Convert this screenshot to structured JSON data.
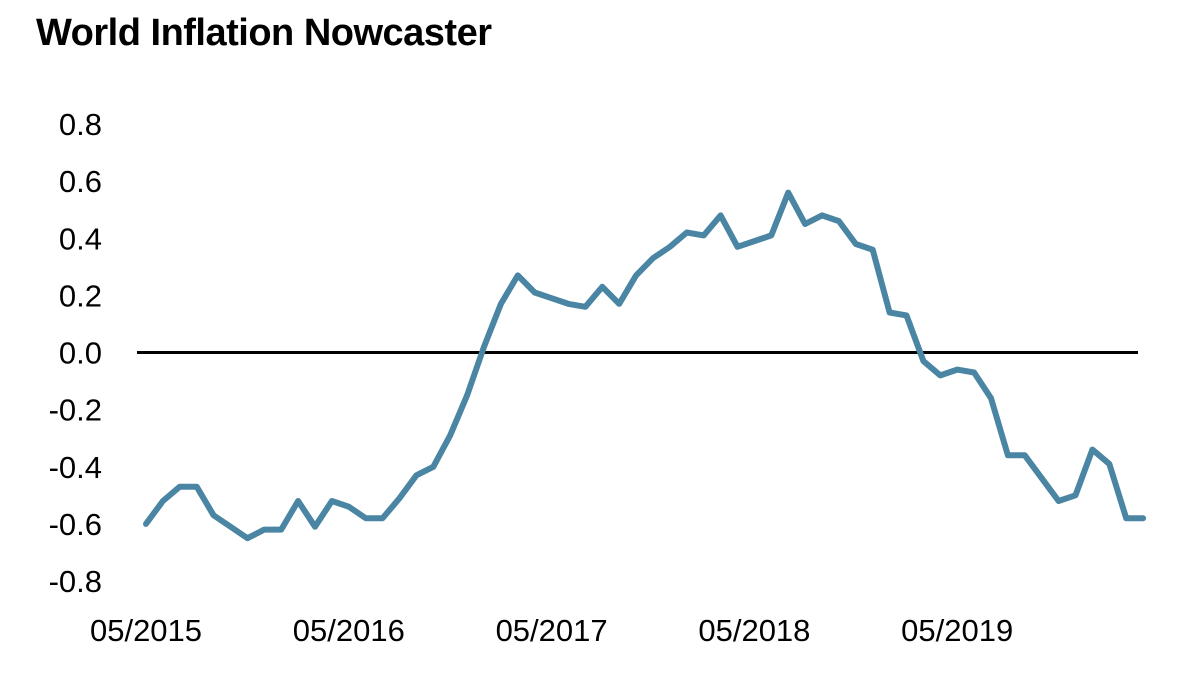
{
  "chart_data": {
    "type": "line",
    "title": "World Inflation Nowcaster",
    "xlabel": "",
    "ylabel": "",
    "ylim": [
      -0.8,
      0.8
    ],
    "yticks": [
      "0.8",
      "0.6",
      "0.4",
      "0.2",
      "0.0",
      "-0.2",
      "-0.4",
      "-0.6",
      "-0.8"
    ],
    "ytick_values": [
      0.8,
      0.6,
      0.4,
      0.2,
      0.0,
      -0.2,
      -0.4,
      -0.6,
      -0.8
    ],
    "xticks": [
      "05/2015",
      "05/2016",
      "05/2017",
      "05/2018",
      "05/2019"
    ],
    "xtick_dates": [
      "2015-05",
      "2016-05",
      "2017-05",
      "2018-05",
      "2019-05"
    ],
    "reference_line": 0.0,
    "grid": false,
    "legend": "none",
    "colors": {
      "series": "#4a86a3",
      "zero_line": "#000000"
    },
    "series": [
      {
        "x": [
          "2015-05",
          "2015-06",
          "2015-07",
          "2015-08",
          "2015-09",
          "2015-10",
          "2015-11",
          "2015-12",
          "2016-01",
          "2016-02",
          "2016-03",
          "2016-04",
          "2016-05",
          "2016-06",
          "2016-07",
          "2016-08",
          "2016-09",
          "2016-10",
          "2016-11",
          "2016-12",
          "2017-01",
          "2017-02",
          "2017-03",
          "2017-04",
          "2017-05",
          "2017-06",
          "2017-07",
          "2017-08",
          "2017-09",
          "2017-10",
          "2017-11",
          "2017-12",
          "2018-01",
          "2018-02",
          "2018-03",
          "2018-04",
          "2018-05",
          "2018-06",
          "2018-07",
          "2018-08",
          "2018-09",
          "2018-10",
          "2018-11",
          "2018-12",
          "2019-01",
          "2019-02",
          "2019-03",
          "2019-04",
          "2019-05",
          "2019-06",
          "2019-07",
          "2019-08",
          "2019-09",
          "2019-10",
          "2019-11",
          "2019-12",
          "2020-01",
          "2020-02",
          "2020-03",
          "2020-04"
        ],
        "values": [
          -0.6,
          -0.52,
          -0.47,
          -0.47,
          -0.57,
          -0.61,
          -0.65,
          -0.62,
          -0.62,
          -0.52,
          -0.61,
          -0.52,
          -0.54,
          -0.58,
          -0.58,
          -0.51,
          -0.43,
          -0.4,
          -0.29,
          -0.15,
          0.02,
          0.17,
          0.27,
          0.21,
          0.19,
          0.17,
          0.16,
          0.23,
          0.17,
          0.27,
          0.33,
          0.37,
          0.42,
          0.41,
          0.48,
          0.37,
          0.39,
          0.41,
          0.56,
          0.45,
          0.48,
          0.46,
          0.38,
          0.36,
          0.14,
          0.13,
          -0.03,
          -0.08,
          -0.06,
          -0.07,
          -0.16,
          -0.36,
          -0.36,
          -0.44,
          -0.52,
          -0.5,
          -0.34,
          -0.39,
          -0.58,
          -0.58
        ]
      }
    ]
  }
}
